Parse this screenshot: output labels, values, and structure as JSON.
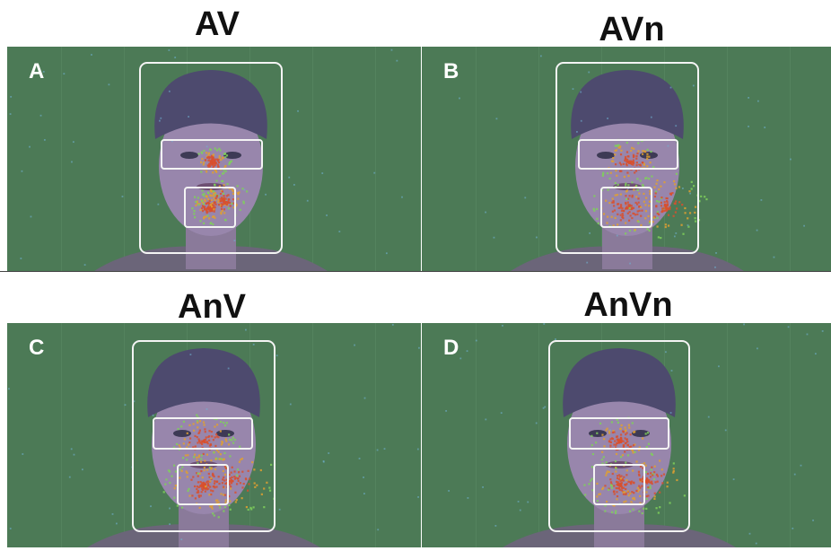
{
  "panels": [
    {
      "title": "AV",
      "letter": "A"
    },
    {
      "title": "AVn",
      "letter": "B"
    },
    {
      "title": "AnV",
      "letter": "C"
    },
    {
      "title": "AnVn",
      "letter": "D"
    }
  ],
  "colors": {
    "background": "#4c7a56",
    "box_outline": "#f4f4f4",
    "heat_hot": "#d8502e",
    "heat_warm": "#e0a030",
    "heat_cool": "#7fd05a"
  }
}
